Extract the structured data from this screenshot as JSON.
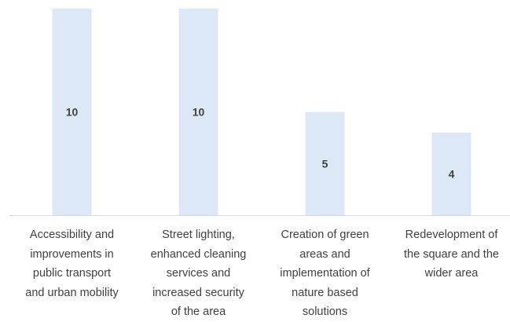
{
  "chart_data": {
    "type": "bar",
    "categories": [
      "Accessibility and\nimprovements in\npublic transport\nand urban mobility",
      "Street lighting,\nenhanced cleaning\nservices and\nincreased security\nof the area",
      "Creation of green\nareas and\nimplementation of\nnature based\nsolutions",
      "Redevelopment of\nthe square and the\nwider area"
    ],
    "values": [
      10,
      10,
      5,
      4
    ],
    "data_labels": [
      "10",
      "10",
      "5",
      "4"
    ],
    "ylim": [
      0,
      10
    ],
    "title": "",
    "xlabel": "",
    "ylabel": "",
    "grid": false,
    "legend": "none",
    "colors": {
      "bar": "#dce8f6",
      "axis": "#d9d9d9",
      "label": "#404040"
    }
  }
}
